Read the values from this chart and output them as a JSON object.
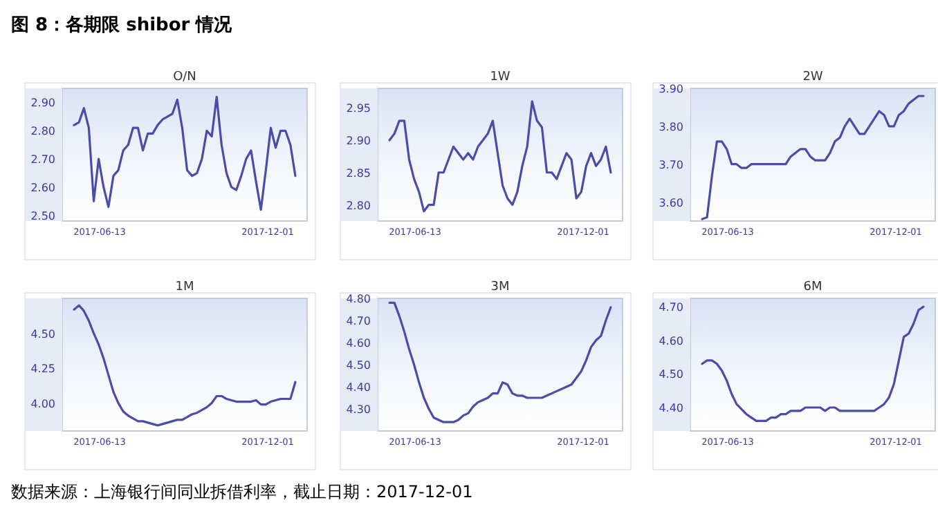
{
  "chart_data": [
    {
      "type": "line",
      "title": "O/N",
      "annotations": [
        "图 8：各期限 shibor 情况",
        "数据来源：上海银行间同业拆借利率，截止日期：2017-12-01"
      ],
      "color": "#4b4ba8",
      "x": [
        "2017-05-18",
        "2017-05-23",
        "2017-05-28",
        "2017-06-02",
        "2017-06-07",
        "2017-06-12",
        "2017-06-17",
        "2017-06-22",
        "2017-06-27",
        "2017-07-02",
        "2017-07-07",
        "2017-07-12",
        "2017-07-17",
        "2017-07-22",
        "2017-07-27",
        "2017-08-01",
        "2017-08-06",
        "2017-08-11",
        "2017-08-16",
        "2017-08-21",
        "2017-08-26",
        "2017-08-31",
        "2017-09-05",
        "2017-09-10",
        "2017-09-15",
        "2017-09-20",
        "2017-09-25",
        "2017-09-30",
        "2017-10-05",
        "2017-10-10",
        "2017-10-15",
        "2017-10-20",
        "2017-10-25",
        "2017-10-30",
        "2017-11-04",
        "2017-11-09",
        "2017-11-14",
        "2017-11-19",
        "2017-11-24",
        "2017-11-29",
        "2017-12-04",
        "2017-12-09",
        "2017-12-14",
        "2017-12-19",
        "2017-12-24",
        "2017-12-29"
      ],
      "values": [
        2.82,
        2.83,
        2.88,
        2.81,
        2.55,
        2.7,
        2.6,
        2.53,
        2.64,
        2.66,
        2.73,
        2.75,
        2.81,
        2.81,
        2.73,
        2.79,
        2.79,
        2.82,
        2.84,
        2.85,
        2.86,
        2.91,
        2.81,
        2.66,
        2.64,
        2.65,
        2.7,
        2.8,
        2.78,
        2.92,
        2.75,
        2.65,
        2.6,
        2.59,
        2.64,
        2.7,
        2.73,
        2.62,
        2.52,
        2.66,
        2.81,
        2.74,
        2.8,
        2.8,
        2.75,
        2.64
      ],
      "xlim": [
        "2017-05-06",
        "2018-01-10"
      ],
      "xticks": [
        "2017-06-13",
        "2017-12-01"
      ],
      "ylim": [
        2.48,
        2.95
      ],
      "yticks": [
        {
          "value": 2.5,
          "label": "2.50"
        },
        {
          "value": 2.6,
          "label": "2.60"
        },
        {
          "value": 2.7,
          "label": "2.70"
        },
        {
          "value": 2.8,
          "label": "2.80"
        },
        {
          "value": 2.9,
          "label": "2.90"
        }
      ]
    },
    {
      "type": "line",
      "title": "1W",
      "color": "#4b4ba8",
      "x": [
        "2017-05-18",
        "2017-05-23",
        "2017-05-28",
        "2017-06-02",
        "2017-06-07",
        "2017-06-12",
        "2017-06-17",
        "2017-06-22",
        "2017-06-27",
        "2017-07-02",
        "2017-07-07",
        "2017-07-12",
        "2017-07-17",
        "2017-07-22",
        "2017-07-27",
        "2017-08-01",
        "2017-08-06",
        "2017-08-11",
        "2017-08-16",
        "2017-08-21",
        "2017-08-26",
        "2017-08-31",
        "2017-09-05",
        "2017-09-10",
        "2017-09-15",
        "2017-09-20",
        "2017-09-25",
        "2017-09-30",
        "2017-10-05",
        "2017-10-10",
        "2017-10-15",
        "2017-10-20",
        "2017-10-25",
        "2017-10-30",
        "2017-11-04",
        "2017-11-09",
        "2017-11-14",
        "2017-11-19",
        "2017-11-24",
        "2017-11-29",
        "2017-12-04",
        "2017-12-09",
        "2017-12-14",
        "2017-12-19",
        "2017-12-24",
        "2017-12-29"
      ],
      "values": [
        2.9,
        2.91,
        2.93,
        2.93,
        2.87,
        2.84,
        2.82,
        2.79,
        2.8,
        2.8,
        2.85,
        2.85,
        2.87,
        2.89,
        2.88,
        2.87,
        2.88,
        2.87,
        2.89,
        2.9,
        2.91,
        2.93,
        2.88,
        2.83,
        2.81,
        2.8,
        2.82,
        2.86,
        2.89,
        2.96,
        2.93,
        2.92,
        2.85,
        2.85,
        2.84,
        2.86,
        2.88,
        2.87,
        2.81,
        2.82,
        2.86,
        2.88,
        2.86,
        2.87,
        2.89,
        2.85
      ],
      "xlim": [
        "2017-05-06",
        "2018-01-10"
      ],
      "xticks": [
        "2017-06-13",
        "2017-12-01"
      ],
      "ylim": [
        2.775,
        2.98
      ],
      "yticks": [
        {
          "value": 2.8,
          "label": "2.80"
        },
        {
          "value": 2.85,
          "label": "2.85"
        },
        {
          "value": 2.9,
          "label": "2.90"
        },
        {
          "value": 2.95,
          "label": "2.95"
        }
      ]
    },
    {
      "type": "line",
      "title": "2W",
      "color": "#4b4ba8",
      "x": [
        "2017-05-18",
        "2017-05-23",
        "2017-05-28",
        "2017-06-02",
        "2017-06-07",
        "2017-06-12",
        "2017-06-17",
        "2017-06-22",
        "2017-06-27",
        "2017-07-02",
        "2017-07-07",
        "2017-07-12",
        "2017-07-17",
        "2017-07-22",
        "2017-07-27",
        "2017-08-01",
        "2017-08-06",
        "2017-08-11",
        "2017-08-16",
        "2017-08-21",
        "2017-08-26",
        "2017-08-31",
        "2017-09-05",
        "2017-09-10",
        "2017-09-15",
        "2017-09-20",
        "2017-09-25",
        "2017-09-30",
        "2017-10-05",
        "2017-10-10",
        "2017-10-15",
        "2017-10-20",
        "2017-10-25",
        "2017-10-30",
        "2017-11-04",
        "2017-11-09",
        "2017-11-14",
        "2017-11-19",
        "2017-11-24",
        "2017-11-29",
        "2017-12-04",
        "2017-12-09",
        "2017-12-14",
        "2017-12-19",
        "2017-12-24",
        "2017-12-29"
      ],
      "values": [
        3.555,
        3.56,
        3.67,
        3.76,
        3.76,
        3.74,
        3.7,
        3.7,
        3.69,
        3.69,
        3.7,
        3.7,
        3.7,
        3.7,
        3.7,
        3.7,
        3.7,
        3.7,
        3.72,
        3.73,
        3.74,
        3.74,
        3.72,
        3.71,
        3.71,
        3.71,
        3.73,
        3.76,
        3.77,
        3.8,
        3.82,
        3.8,
        3.78,
        3.78,
        3.8,
        3.82,
        3.84,
        3.83,
        3.8,
        3.8,
        3.83,
        3.84,
        3.86,
        3.87,
        3.88,
        3.88
      ],
      "xlim": [
        "2017-05-06",
        "2018-01-10"
      ],
      "xticks": [
        "2017-06-13",
        "2017-12-01"
      ],
      "ylim": [
        3.55,
        3.9
      ],
      "yticks": [
        {
          "value": 3.6,
          "label": "3.60"
        },
        {
          "value": 3.7,
          "label": "3.70"
        },
        {
          "value": 3.8,
          "label": "3.80"
        },
        {
          "value": 3.9,
          "label": "3.90"
        }
      ]
    },
    {
      "type": "line",
      "title": "1M",
      "color": "#4b4ba8",
      "x": [
        "2017-05-18",
        "2017-05-23",
        "2017-05-28",
        "2017-06-02",
        "2017-06-07",
        "2017-06-12",
        "2017-06-17",
        "2017-06-22",
        "2017-06-27",
        "2017-07-02",
        "2017-07-07",
        "2017-07-12",
        "2017-07-17",
        "2017-07-22",
        "2017-07-27",
        "2017-08-01",
        "2017-08-06",
        "2017-08-11",
        "2017-08-16",
        "2017-08-21",
        "2017-08-26",
        "2017-08-31",
        "2017-09-05",
        "2017-09-10",
        "2017-09-15",
        "2017-09-20",
        "2017-09-25",
        "2017-09-30",
        "2017-10-05",
        "2017-10-10",
        "2017-10-15",
        "2017-10-20",
        "2017-10-25",
        "2017-10-30",
        "2017-11-04",
        "2017-11-09",
        "2017-11-14",
        "2017-11-19",
        "2017-11-24",
        "2017-11-29",
        "2017-12-04",
        "2017-12-09",
        "2017-12-14",
        "2017-12-19",
        "2017-12-24",
        "2017-12-29"
      ],
      "values": [
        4.67,
        4.7,
        4.66,
        4.59,
        4.5,
        4.42,
        4.32,
        4.2,
        4.08,
        4.0,
        3.94,
        3.91,
        3.89,
        3.87,
        3.87,
        3.86,
        3.85,
        3.84,
        3.85,
        3.86,
        3.87,
        3.88,
        3.88,
        3.9,
        3.92,
        3.93,
        3.95,
        3.97,
        4.0,
        4.05,
        4.05,
        4.03,
        4.02,
        4.01,
        4.01,
        4.01,
        4.01,
        4.02,
        3.99,
        3.99,
        4.01,
        4.02,
        4.03,
        4.03,
        4.03,
        4.15
      ],
      "xlim": [
        "2017-05-06",
        "2018-01-10"
      ],
      "xticks": [
        "2017-06-13",
        "2017-12-01"
      ],
      "ylim": [
        3.8,
        4.75
      ],
      "yticks": [
        {
          "value": 4.0,
          "label": "4.00"
        },
        {
          "value": 4.25,
          "label": "4.25"
        },
        {
          "value": 4.5,
          "label": "4.50"
        }
      ]
    },
    {
      "type": "line",
      "title": "3M",
      "color": "#4b4ba8",
      "x": [
        "2017-05-18",
        "2017-05-23",
        "2017-05-28",
        "2017-06-02",
        "2017-06-07",
        "2017-06-12",
        "2017-06-17",
        "2017-06-22",
        "2017-06-27",
        "2017-07-02",
        "2017-07-07",
        "2017-07-12",
        "2017-07-17",
        "2017-07-22",
        "2017-07-27",
        "2017-08-01",
        "2017-08-06",
        "2017-08-11",
        "2017-08-16",
        "2017-08-21",
        "2017-08-26",
        "2017-08-31",
        "2017-09-05",
        "2017-09-10",
        "2017-09-15",
        "2017-09-20",
        "2017-09-25",
        "2017-09-30",
        "2017-10-05",
        "2017-10-10",
        "2017-10-15",
        "2017-10-20",
        "2017-10-25",
        "2017-10-30",
        "2017-11-04",
        "2017-11-09",
        "2017-11-14",
        "2017-11-19",
        "2017-11-24",
        "2017-11-29",
        "2017-12-04",
        "2017-12-09",
        "2017-12-14",
        "2017-12-19",
        "2017-12-24",
        "2017-12-29"
      ],
      "values": [
        4.78,
        4.78,
        4.72,
        4.65,
        4.57,
        4.5,
        4.42,
        4.35,
        4.3,
        4.26,
        4.25,
        4.24,
        4.24,
        4.24,
        4.25,
        4.27,
        4.28,
        4.31,
        4.33,
        4.34,
        4.35,
        4.37,
        4.37,
        4.42,
        4.41,
        4.37,
        4.36,
        4.36,
        4.35,
        4.35,
        4.35,
        4.35,
        4.36,
        4.37,
        4.38,
        4.39,
        4.4,
        4.41,
        4.44,
        4.47,
        4.52,
        4.58,
        4.61,
        4.63,
        4.7,
        4.76
      ],
      "xlim": [
        "2017-05-06",
        "2018-01-10"
      ],
      "xticks": [
        "2017-06-13",
        "2017-12-01"
      ],
      "ylim": [
        4.2,
        4.8
      ],
      "yticks": [
        {
          "value": 4.3,
          "label": "4.30"
        },
        {
          "value": 4.4,
          "label": "4.40"
        },
        {
          "value": 4.5,
          "label": "4.50"
        },
        {
          "value": 4.6,
          "label": "4.60"
        },
        {
          "value": 4.7,
          "label": "4.70"
        },
        {
          "value": 4.8,
          "label": "4.80"
        }
      ]
    },
    {
      "type": "line",
      "title": "6M",
      "color": "#4b4ba8",
      "x": [
        "2017-05-18",
        "2017-05-23",
        "2017-05-28",
        "2017-06-02",
        "2017-06-07",
        "2017-06-12",
        "2017-06-17",
        "2017-06-22",
        "2017-06-27",
        "2017-07-02",
        "2017-07-07",
        "2017-07-12",
        "2017-07-17",
        "2017-07-22",
        "2017-07-27",
        "2017-08-01",
        "2017-08-06",
        "2017-08-11",
        "2017-08-16",
        "2017-08-21",
        "2017-08-26",
        "2017-08-31",
        "2017-09-05",
        "2017-09-10",
        "2017-09-15",
        "2017-09-20",
        "2017-09-25",
        "2017-09-30",
        "2017-10-05",
        "2017-10-10",
        "2017-10-15",
        "2017-10-20",
        "2017-10-25",
        "2017-10-30",
        "2017-11-04",
        "2017-11-09",
        "2017-11-14",
        "2017-11-19",
        "2017-11-24",
        "2017-11-29",
        "2017-12-04",
        "2017-12-09",
        "2017-12-14",
        "2017-12-19",
        "2017-12-24",
        "2017-12-29"
      ],
      "values": [
        4.53,
        4.54,
        4.54,
        4.53,
        4.51,
        4.48,
        4.44,
        4.41,
        4.395,
        4.38,
        4.37,
        4.36,
        4.36,
        4.36,
        4.37,
        4.37,
        4.38,
        4.38,
        4.39,
        4.39,
        4.39,
        4.4,
        4.4,
        4.4,
        4.4,
        4.39,
        4.4,
        4.4,
        4.39,
        4.39,
        4.39,
        4.39,
        4.39,
        4.39,
        4.39,
        4.39,
        4.4,
        4.41,
        4.43,
        4.47,
        4.54,
        4.61,
        4.62,
        4.65,
        4.69,
        4.7
      ],
      "xlim": [
        "2017-05-06",
        "2018-01-10"
      ],
      "xticks": [
        "2017-06-13",
        "2017-12-01"
      ],
      "ylim": [
        4.33,
        4.725
      ],
      "yticks": [
        {
          "value": 4.4,
          "label": "4.40"
        },
        {
          "value": 4.5,
          "label": "4.50"
        },
        {
          "value": 4.6,
          "label": "4.60"
        },
        {
          "value": 4.7,
          "label": "4.70"
        }
      ]
    }
  ]
}
